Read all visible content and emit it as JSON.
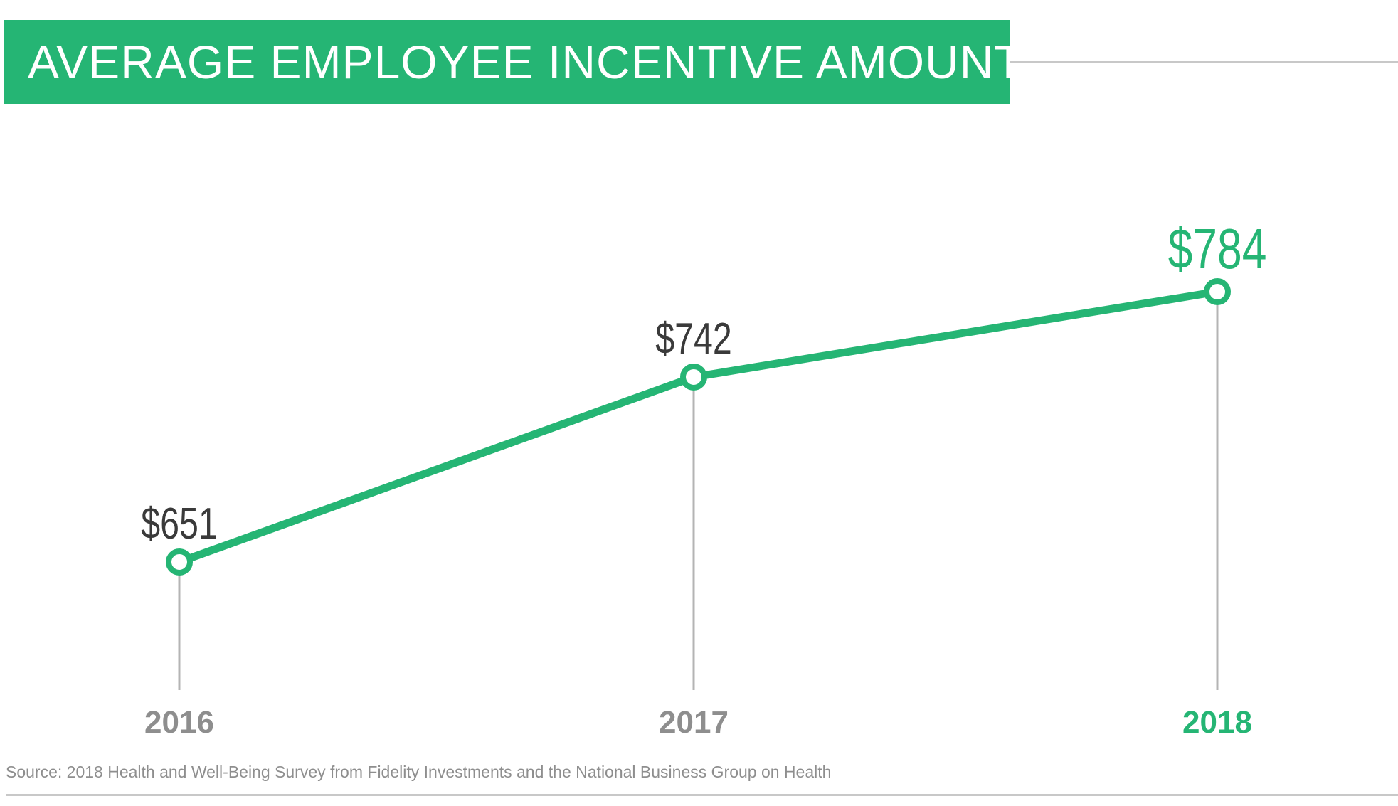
{
  "chart_data": {
    "type": "line",
    "title": "AVERAGE EMPLOYEE INCENTIVE AMOUNT",
    "categories": [
      "2016",
      "2017",
      "2018"
    ],
    "values": [
      651,
      742,
      784
    ],
    "value_labels": [
      "$651",
      "$742",
      "$784"
    ],
    "series": [
      {
        "values": [
          651,
          742,
          784
        ]
      }
    ],
    "ylim": [
      560,
      840
    ],
    "grid": false,
    "highlight_index": 2,
    "source": "Source: 2018 Health and Well-Being Survey from Fidelity Investments and the National Business Group on Health"
  },
  "colors": {
    "accent": "#25b574",
    "label_dark": "#3a3a3a",
    "tick_gray": "#8e8e8e",
    "drop_line": "#b4b4b4"
  }
}
